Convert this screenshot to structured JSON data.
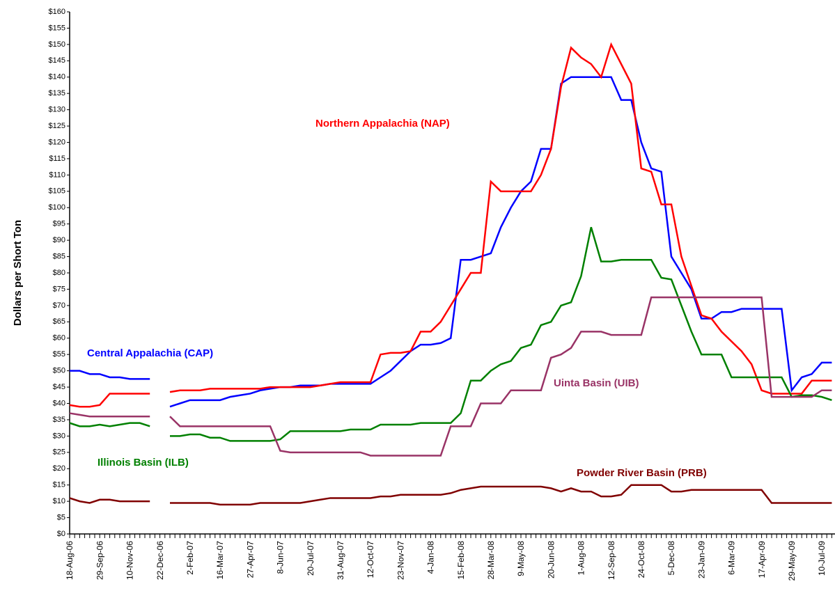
{
  "chart_data": {
    "type": "line",
    "y_label": "Dollars per Short Ton",
    "categories": [
      "18-Aug-06",
      null,
      null,
      "29-Sep-06",
      null,
      null,
      "10-Nov-06",
      null,
      null,
      "22-Dec-06",
      null,
      null,
      "2-Feb-07",
      null,
      null,
      "16-Mar-07",
      null,
      null,
      "27-Apr-07",
      null,
      null,
      "8-Jun-07",
      null,
      null,
      "20-Jul-07",
      null,
      null,
      "31-Aug-07",
      null,
      null,
      "12-Oct-07",
      null,
      null,
      "23-Nov-07",
      null,
      null,
      "4-Jan-08",
      null,
      null,
      "15-Feb-08",
      null,
      null,
      "28-Mar-08",
      null,
      null,
      "9-May-08",
      null,
      null,
      "20-Jun-08",
      null,
      null,
      "1-Aug-08",
      null,
      null,
      "12-Sep-08",
      null,
      null,
      "24-Oct-08",
      null,
      null,
      "5-Dec-08",
      null,
      null,
      "23-Jan-09",
      null,
      null,
      "6-Mar-09",
      null,
      null,
      "17-Apr-09",
      null,
      null,
      "29-May-09",
      null,
      null,
      "10-Jul-09",
      null
    ],
    "series": [
      {
        "name": "Central Appalachia (CAP)",
        "color": "#0000ff",
        "values": [
          50,
          50,
          49,
          49,
          48,
          48,
          47.5,
          47.5,
          47.5,
          null,
          39,
          40,
          41,
          41,
          41,
          41,
          42,
          42.5,
          43,
          44,
          44.5,
          45,
          45,
          45.5,
          45.5,
          45.5,
          46,
          46,
          46,
          46,
          46,
          48,
          50,
          53,
          56,
          58,
          58,
          58.5,
          60,
          84,
          84,
          85,
          86,
          94,
          100,
          105,
          108,
          118,
          118,
          138,
          140,
          140,
          140,
          140,
          140,
          133,
          133,
          120,
          112,
          111,
          85,
          80,
          75,
          66,
          66,
          68,
          68,
          69,
          69,
          69,
          69,
          69,
          44,
          48,
          49,
          52.5,
          52.5
        ]
      },
      {
        "name": "Northern Appalachia (NAP)",
        "color": "#ff0000",
        "values": [
          39.5,
          39,
          39,
          39.5,
          43,
          43,
          43,
          43,
          43,
          null,
          43.5,
          44,
          44,
          44,
          44.5,
          44.5,
          44.5,
          44.5,
          44.5,
          44.5,
          45,
          45,
          45,
          45,
          45,
          45.5,
          46,
          46.5,
          46.5,
          46.5,
          46.5,
          55,
          55.5,
          55.5,
          56,
          62,
          62,
          65,
          70,
          75,
          80,
          80,
          108,
          105,
          105,
          105,
          105,
          110,
          118,
          137,
          149,
          146,
          144,
          140,
          150,
          144,
          138,
          112,
          111,
          101,
          101,
          85,
          76,
          67,
          66,
          62,
          59,
          56,
          52,
          44,
          43,
          43,
          43,
          43,
          47,
          47,
          47
        ]
      },
      {
        "name": "Illinois Basin (ILB)",
        "color": "#008000",
        "values": [
          34,
          33,
          33,
          33.5,
          33,
          33.5,
          34,
          34,
          33,
          null,
          30,
          30,
          30.5,
          30.5,
          29.5,
          29.5,
          28.5,
          28.5,
          28.5,
          28.5,
          28.5,
          29,
          31.5,
          31.5,
          31.5,
          31.5,
          31.5,
          31.5,
          32,
          32,
          32,
          33.5,
          33.5,
          33.5,
          33.5,
          34,
          34,
          34,
          34,
          37,
          47,
          47,
          50,
          52,
          53,
          57,
          58,
          64,
          65,
          70,
          71,
          79,
          94,
          83.5,
          83.5,
          84,
          84,
          84,
          84,
          78.5,
          78,
          70,
          62,
          55,
          55,
          55,
          48,
          48,
          48,
          48,
          48,
          48,
          42,
          42.5,
          42.5,
          42,
          41
        ]
      },
      {
        "name": "Uinta Basin (UIB)",
        "color": "#993366",
        "values": [
          37,
          36.5,
          36,
          36,
          36,
          36,
          36,
          36,
          36,
          null,
          36,
          33,
          33,
          33,
          33,
          33,
          33,
          33,
          33,
          33,
          33,
          25.5,
          25,
          25,
          25,
          25,
          25,
          25,
          25,
          25,
          24,
          24,
          24,
          24,
          24,
          24,
          24,
          24,
          33,
          33,
          33,
          40,
          40,
          40,
          44,
          44,
          44,
          44,
          54,
          55,
          57,
          62,
          62,
          62,
          61,
          61,
          61,
          61,
          72.5,
          72.5,
          72.5,
          72.5,
          72.5,
          72.5,
          72.5,
          72.5,
          72.5,
          72.5,
          72.5,
          72.5,
          42,
          42,
          42,
          42,
          42,
          44,
          44
        ]
      },
      {
        "name": "Powder River Basin (PRB)",
        "color": "#800000",
        "values": [
          11,
          10,
          9.5,
          10.5,
          10.5,
          10,
          10,
          10,
          10,
          null,
          9.5,
          9.5,
          9.5,
          9.5,
          9.5,
          9,
          9,
          9,
          9,
          9.5,
          9.5,
          9.5,
          9.5,
          9.5,
          10,
          10.5,
          11,
          11,
          11,
          11,
          11,
          11.5,
          11.5,
          12,
          12,
          12,
          12,
          12,
          12.5,
          13.5,
          14,
          14.5,
          14.5,
          14.5,
          14.5,
          14.5,
          14.5,
          14.5,
          14,
          13,
          14,
          13,
          13,
          11.5,
          11.5,
          12,
          15,
          15,
          15,
          15,
          13,
          13,
          13.5,
          13.5,
          13.5,
          13.5,
          13.5,
          13.5,
          13.5,
          13.5,
          9.5,
          9.5,
          9.5,
          9.5,
          9.5,
          9.5,
          9.5
        ]
      }
    ],
    "ylim": [
      0,
      160
    ],
    "yticks": [
      {
        "value": 0,
        "label": "$0"
      },
      {
        "value": 5,
        "label": "$5"
      },
      {
        "value": 10,
        "label": "$10"
      },
      {
        "value": 15,
        "label": "$15"
      },
      {
        "value": 20,
        "label": "$20"
      },
      {
        "value": 25,
        "label": "$25"
      },
      {
        "value": 30,
        "label": "$30"
      },
      {
        "value": 35,
        "label": "$35"
      },
      {
        "value": 40,
        "label": "$40"
      },
      {
        "value": 45,
        "label": "$45"
      },
      {
        "value": 50,
        "label": "$50"
      },
      {
        "value": 55,
        "label": "$55"
      },
      {
        "value": 60,
        "label": "$60"
      },
      {
        "value": 65,
        "label": "$65"
      },
      {
        "value": 70,
        "label": "$70"
      },
      {
        "value": 75,
        "label": "$75"
      },
      {
        "value": 80,
        "label": "$80"
      },
      {
        "value": 85,
        "label": "$85"
      },
      {
        "value": 90,
        "label": "$90"
      },
      {
        "value": 95,
        "label": "$95"
      },
      {
        "value": 100,
        "label": "$100"
      },
      {
        "value": 105,
        "label": "$105"
      },
      {
        "value": 110,
        "label": "$110"
      },
      {
        "value": 115,
        "label": "$115"
      },
      {
        "value": 120,
        "label": "$120"
      },
      {
        "value": 125,
        "label": "$125"
      },
      {
        "value": 130,
        "label": "$130"
      },
      {
        "value": 135,
        "label": "$135"
      },
      {
        "value": 140,
        "label": "$140"
      },
      {
        "value": 145,
        "label": "$145"
      },
      {
        "value": 150,
        "label": "$150"
      },
      {
        "value": 155,
        "label": "$155"
      },
      {
        "value": 160,
        "label": "$160"
      }
    ],
    "grid": false
  }
}
